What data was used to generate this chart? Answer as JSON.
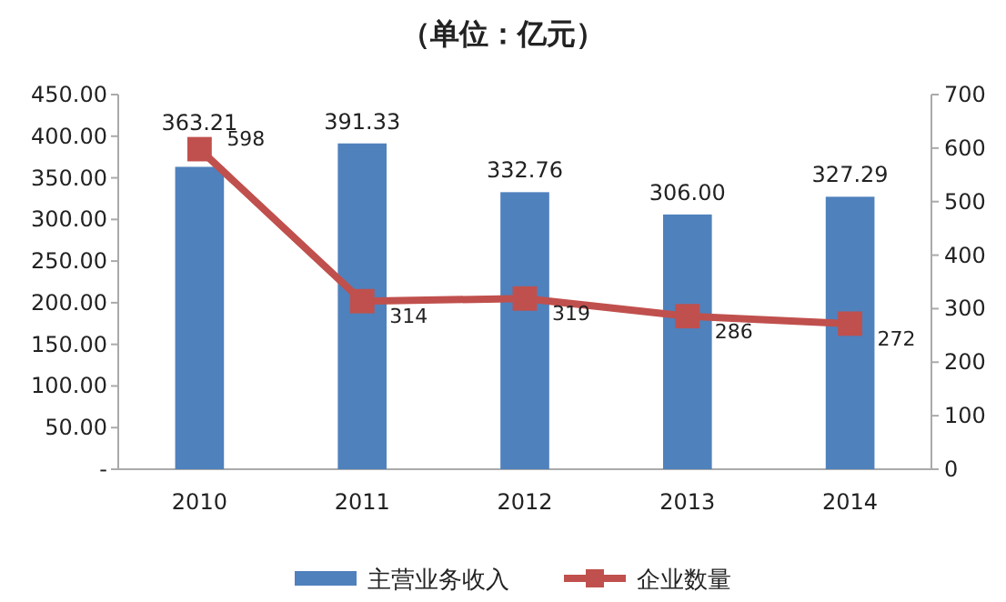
{
  "chart_data": {
    "type": "bar",
    "title": "（单位：亿元）",
    "categories": [
      "2010",
      "2011",
      "2012",
      "2013",
      "2014"
    ],
    "series": [
      {
        "name": "主营业务收入",
        "color": "#4f81bd",
        "values": [
          363.21,
          391.33,
          332.76,
          306.0,
          327.29
        ],
        "value_labels": [
          "363.21",
          "391.33",
          "332.76",
          "306.00",
          "327.29"
        ]
      },
      {
        "name": "企业数量",
        "type": "line",
        "axis": "y2",
        "color": "#c0504d",
        "marker": "square",
        "values": [
          598,
          314,
          319,
          286,
          272
        ],
        "value_labels": [
          "598",
          "314",
          "319",
          "286",
          "272"
        ]
      }
    ],
    "ylim": [
      0,
      450
    ],
    "yticks": [
      {
        "value": 0,
        "label": "-"
      },
      {
        "value": 50,
        "label": "50.00"
      },
      {
        "value": 100,
        "label": "100.00"
      },
      {
        "value": 150,
        "label": "150.00"
      },
      {
        "value": 200,
        "label": "200.00"
      },
      {
        "value": 250,
        "label": "250.00"
      },
      {
        "value": 300,
        "label": "300.00"
      },
      {
        "value": 350,
        "label": "350.00"
      },
      {
        "value": 400,
        "label": "400.00"
      },
      {
        "value": 450,
        "label": "450.00"
      }
    ],
    "y2lim": [
      0,
      700
    ],
    "y2ticks": [
      0,
      100,
      200,
      300,
      400,
      500,
      600,
      700
    ],
    "legend": "bottom",
    "grid": false
  }
}
